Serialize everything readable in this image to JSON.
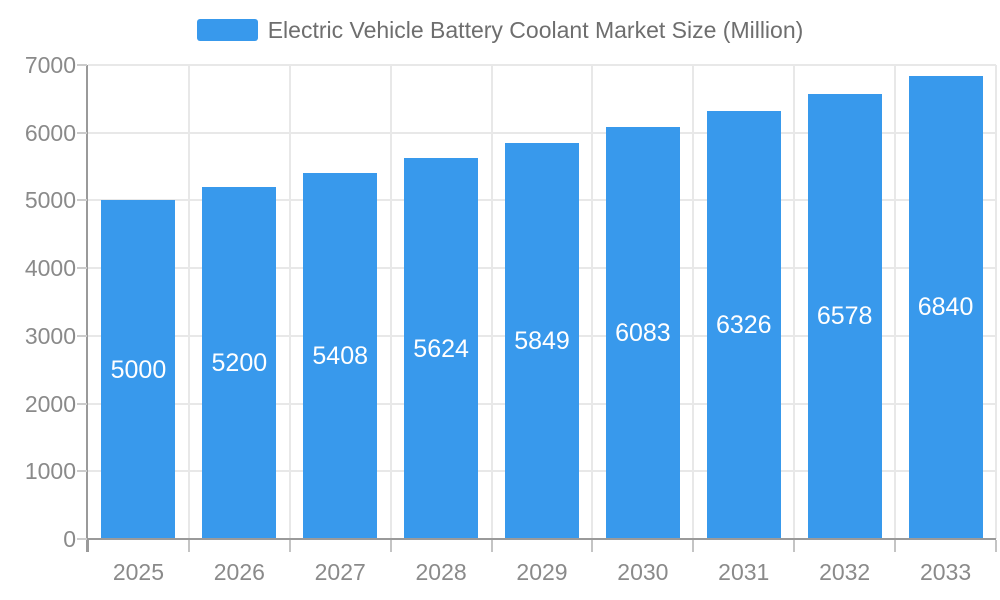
{
  "legend": {
    "label": "Electric Vehicle Battery Coolant Market Size (Million)"
  },
  "chart_data": {
    "type": "bar",
    "title": "Electric Vehicle Battery Coolant Market Size (Million)",
    "categories": [
      "2025",
      "2026",
      "2027",
      "2028",
      "2029",
      "2030",
      "2031",
      "2032",
      "2033"
    ],
    "values": [
      5000,
      5200,
      5408,
      5624,
      5849,
      6083,
      6326,
      6578,
      6840
    ],
    "series": [
      {
        "name": "Electric Vehicle Battery Coolant Market Size (Million)",
        "values": [
          5000,
          5200,
          5408,
          5624,
          5849,
          6083,
          6326,
          6578,
          6840
        ]
      }
    ],
    "legend": [
      "Electric Vehicle Battery Coolant Market Size (Million)"
    ],
    "legend_position": "top-center",
    "xlabel": "",
    "ylabel": "",
    "ylim": [
      0,
      7000
    ],
    "yticks": [
      0,
      1000,
      2000,
      3000,
      4000,
      5000,
      6000,
      7000
    ],
    "grid": true,
    "value_labels": "inside-center",
    "colors": {
      "bar": "#3899ec",
      "value_label": "#ffffff",
      "axis_label": "#8a8a8a",
      "legend_text": "#6e6e6e",
      "grid_line": "#e8e8e8",
      "axis_line": "#9a9a9a",
      "tick": "#c4c4c4"
    }
  }
}
